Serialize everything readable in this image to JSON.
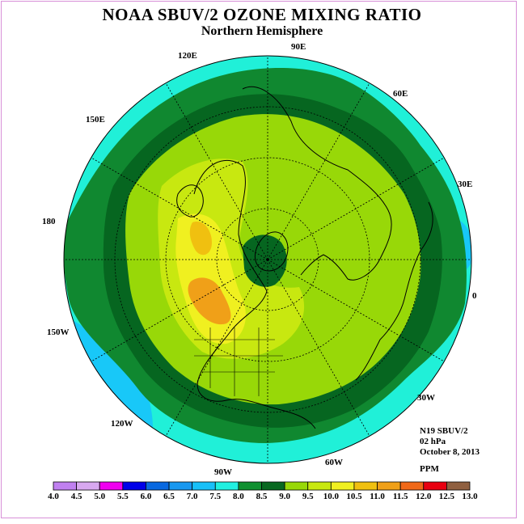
{
  "title": "NOAA SBUV/2 OZONE MIXING RATIO",
  "subtitle": "Northern Hemisphere",
  "longitude_labels": [
    {
      "id": "90E",
      "text": "90E"
    },
    {
      "id": "60E",
      "text": "60E"
    },
    {
      "id": "30E",
      "text": "30E"
    },
    {
      "id": "0",
      "text": "0"
    },
    {
      "id": "30W",
      "text": "30W"
    },
    {
      "id": "60W",
      "text": "60W"
    },
    {
      "id": "90W",
      "text": "90W"
    },
    {
      "id": "120W",
      "text": "120W"
    },
    {
      "id": "150W",
      "text": "150W"
    },
    {
      "id": "180",
      "text": "180"
    },
    {
      "id": "150E",
      "text": "150E"
    },
    {
      "id": "120E",
      "text": "120E"
    }
  ],
  "info": {
    "instrument": "N19 SBUV/2",
    "level": "02 hPa",
    "date": "October 8, 2013",
    "units": "PPM"
  },
  "colorbar": {
    "labels": [
      "4.0",
      "4.5",
      "5.0",
      "5.5",
      "6.0",
      "6.5",
      "7.0",
      "7.5",
      "8.0",
      "8.5",
      "9.0",
      "9.5",
      "10.0",
      "10.5",
      "11.0",
      "11.5",
      "12.0",
      "12.5",
      "13.0"
    ],
    "colors": [
      "#c080f0",
      "#d8a8f0",
      "#f000f0",
      "#0000e8",
      "#0868e0",
      "#1898f0",
      "#18c0f8",
      "#20f0e0",
      "#109030",
      "#086820",
      "#98d808",
      "#c8e810",
      "#f0f020",
      "#f0c010",
      "#f0a018",
      "#f06818",
      "#e80010",
      "#906040"
    ]
  },
  "field_colors": {
    "c7_5": "#20f0d8",
    "c7_0": "#18c8f8",
    "c8_0": "#108830",
    "c8_5": "#066620",
    "c9_0": "#98d808",
    "c9_5": "#c8e810",
    "c10_0": "#f0f020",
    "c10_5": "#f0c010",
    "c11_0": "#f0a018"
  }
}
